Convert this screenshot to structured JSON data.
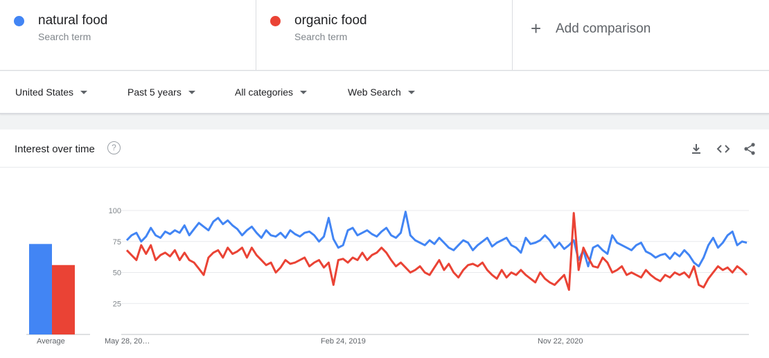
{
  "terms": [
    {
      "name": "natural food",
      "sub": "Search term",
      "color": "#4285f4"
    },
    {
      "name": "organic food",
      "sub": "Search term",
      "color": "#ea4335"
    }
  ],
  "add_comparison": {
    "icon": "+",
    "label": "Add comparison"
  },
  "filters": {
    "region": "United States",
    "period": "Past 5 years",
    "category": "All categories",
    "search_type": "Web Search"
  },
  "card": {
    "title": "Interest over time",
    "help_icon": "?",
    "icons": [
      "download-icon",
      "embed-icon",
      "share-icon"
    ]
  },
  "chart_data": {
    "type": "line",
    "ylim": [
      0,
      100
    ],
    "yticks": [
      25,
      50,
      75,
      100
    ],
    "x_tick_labels": [
      "May 28, 20…",
      "Feb 24, 2019",
      "Nov 22, 2020"
    ],
    "average_label": "Average",
    "averages": [
      {
        "name": "natural food",
        "value": 73
      },
      {
        "name": "organic food",
        "value": 56
      }
    ],
    "series": [
      {
        "name": "natural food",
        "color": "#4285f4",
        "values": [
          76,
          80,
          82,
          75,
          79,
          86,
          80,
          78,
          83,
          81,
          84,
          82,
          88,
          80,
          85,
          90,
          87,
          84,
          91,
          94,
          89,
          92,
          88,
          85,
          80,
          84,
          87,
          82,
          78,
          84,
          80,
          79,
          82,
          78,
          84,
          81,
          79,
          82,
          83,
          80,
          75,
          79,
          94,
          77,
          70,
          72,
          84,
          86,
          80,
          82,
          84,
          81,
          79,
          83,
          86,
          80,
          78,
          82,
          99,
          80,
          76,
          74,
          72,
          76,
          73,
          78,
          74,
          70,
          68,
          72,
          76,
          74,
          68,
          72,
          75,
          78,
          71,
          74,
          76,
          78,
          72,
          70,
          66,
          78,
          73,
          74,
          76,
          80,
          76,
          70,
          74,
          69,
          72,
          76,
          60,
          68,
          55,
          70,
          72,
          68,
          65,
          80,
          74,
          72,
          70,
          68,
          72,
          74,
          67,
          65,
          62,
          64,
          65,
          61,
          66,
          63,
          68,
          64,
          58,
          55,
          62,
          72,
          78,
          70,
          74,
          80,
          83,
          72,
          75,
          74
        ]
      },
      {
        "name": "organic food",
        "color": "#ea4335",
        "values": [
          68,
          64,
          60,
          72,
          65,
          72,
          60,
          64,
          66,
          63,
          68,
          60,
          66,
          60,
          58,
          53,
          48,
          62,
          66,
          68,
          62,
          70,
          65,
          67,
          70,
          62,
          70,
          64,
          60,
          56,
          58,
          50,
          54,
          60,
          57,
          58,
          60,
          62,
          55,
          58,
          60,
          54,
          58,
          40,
          60,
          61,
          58,
          62,
          60,
          66,
          60,
          64,
          66,
          70,
          66,
          60,
          55,
          58,
          54,
          50,
          52,
          55,
          50,
          48,
          54,
          60,
          52,
          57,
          50,
          46,
          52,
          56,
          57,
          55,
          58,
          52,
          48,
          45,
          52,
          46,
          50,
          48,
          52,
          48,
          45,
          42,
          50,
          45,
          42,
          40,
          44,
          48,
          36,
          98,
          52,
          70,
          62,
          55,
          54,
          62,
          58,
          50,
          52,
          55,
          48,
          50,
          48,
          46,
          52,
          48,
          45,
          43,
          48,
          46,
          50,
          48,
          50,
          46,
          55,
          40,
          38,
          45,
          50,
          55,
          52,
          54,
          50,
          55,
          52,
          48
        ]
      }
    ]
  }
}
